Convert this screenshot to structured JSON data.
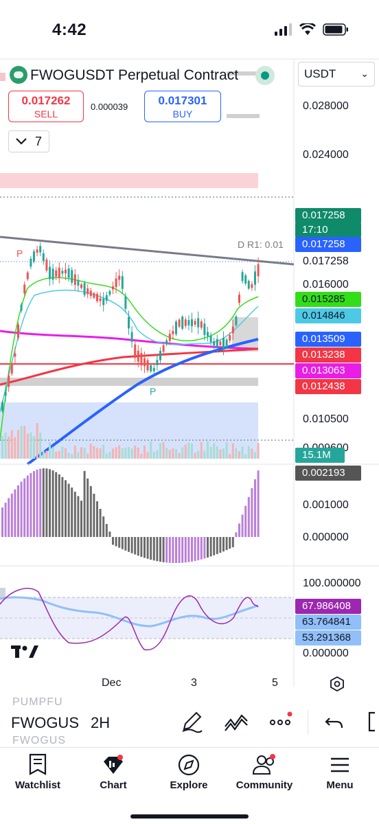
{
  "status_bar": {
    "time": "4:42"
  },
  "header": {
    "title": "FWOGUSDT Perpetual Contract",
    "currency": "USDT"
  },
  "trade": {
    "sell_price": "0.017262",
    "sell_label": "SELL",
    "spread": "0.000039",
    "buy_price": "0.017301",
    "buy_label": "BUY"
  },
  "interval_control": {
    "value": "7"
  },
  "price_axis": {
    "ticks": [
      "0.028000",
      "0.024000",
      "0.017258",
      "0.016000",
      "0.010500",
      "0.009600"
    ]
  },
  "price_tags": [
    {
      "value": "0.017258",
      "color": "#0f8a6a"
    },
    {
      "value": "17:10",
      "color": "#0f8a6a"
    },
    {
      "value": "0.017258",
      "color": "#2962ff"
    },
    {
      "value": "0.015285",
      "color": "#33dd1a"
    },
    {
      "value": "0.014846",
      "color": "#4dc9e6"
    },
    {
      "value": "0.013509",
      "color": "#2962ff"
    },
    {
      "value": "0.013238",
      "color": "#f23645"
    },
    {
      "value": "0.013063",
      "color": "#e91ee6"
    },
    {
      "value": "0.012438",
      "color": "#f23645"
    },
    {
      "value": "15.1M",
      "color": "#26a69a"
    }
  ],
  "chart_labels": {
    "drawing_label": "D R1:  0.01",
    "pivot_high": "P",
    "pivot_low": "P"
  },
  "macd": {
    "tag": "0.002193",
    "ticks": [
      "0.001000",
      "0.000000"
    ]
  },
  "rsi": {
    "ticks": [
      "100.000000",
      "0.000000"
    ],
    "tags": [
      {
        "value": "67.986408",
        "color": "#9c27b0"
      },
      {
        "value": "63.764841",
        "color": "#90bff9"
      },
      {
        "value": "53.291368",
        "color": "#90bff9"
      }
    ]
  },
  "time_axis": {
    "labels": [
      "Dec",
      "3",
      "5"
    ]
  },
  "toolbar": {
    "symbol": "FWOGUS",
    "faded_top": "PUMPFU",
    "faded_bottom": "FWOGUS",
    "interval": "2H"
  },
  "nav": {
    "items": [
      {
        "label": "Watchlist",
        "icon": "watchlist-icon"
      },
      {
        "label": "Chart",
        "icon": "chart-icon"
      },
      {
        "label": "Explore",
        "icon": "compass-icon"
      },
      {
        "label": "Community",
        "icon": "community-icon"
      },
      {
        "label": "Menu",
        "icon": "menu-icon"
      }
    ]
  },
  "colors": {
    "up": "#26a69a",
    "down": "#ef5350",
    "accent": "#2962ff",
    "ma_green": "#33dd1a",
    "ma_blue": "#2962ff",
    "ma_red": "#f23645",
    "ma_magenta": "#e91ee6",
    "macd_purple": "#b97fd8",
    "macd_gray": "#6b6b6b",
    "rsi_purple": "#9c27b0",
    "rsi_blue": "#90bff9"
  }
}
